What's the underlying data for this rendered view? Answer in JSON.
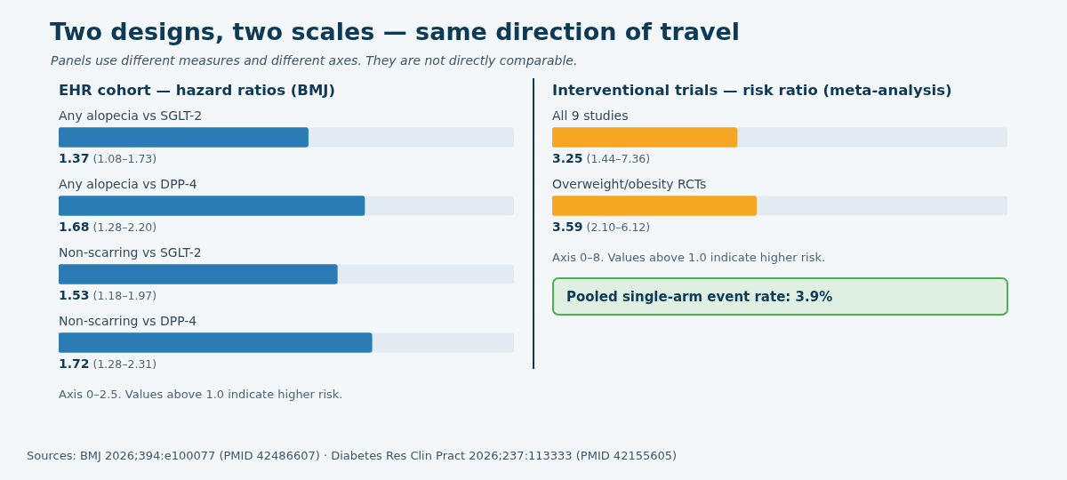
{
  "chart_data": [
    {
      "type": "other",
      "title": "Two designs, two scales — same direction of travel",
      "subtitle": "Panels use different measures and different axes. They are not directly comparable.",
      "annotations": [
        "Sources: BMJ 2026;394:e100077 (PMID 42486607) · Diabetes Res Clin Pract 2026;237:113333 (PMID 42155605)"
      ]
    },
    {
      "type": "bar",
      "orientation": "horizontal",
      "title": "EHR cohort — hazard ratios (BMJ)",
      "categories": [
        "Any alopecia vs SGLT-2",
        "Any alopecia vs DPP-4",
        "Non-scarring vs SGLT-2",
        "Non-scarring vs DPP-4"
      ],
      "values": [
        1.37,
        1.68,
        1.53,
        1.72
      ],
      "value_labels": [
        "1.37 (1.08–1.73)",
        "1.68 (1.28–2.20)",
        "1.53 (1.18–1.97)",
        "1.72 (1.28–2.31)"
      ],
      "color": "#2b7bb5",
      "xlim": [
        0,
        2.5
      ],
      "tick_labels": false,
      "annotations": [
        "Axis 0–2.5. Values above 1.0 indicate higher risk."
      ]
    },
    {
      "type": "bar",
      "orientation": "horizontal",
      "title": "Interventional trials — risk ratio (meta-analysis)",
      "categories": [
        "All 9 studies",
        "Overweight/obesity RCTs"
      ],
      "values": [
        3.25,
        3.59
      ],
      "value_labels": [
        "3.25 (1.44–7.36)",
        "3.59 (2.10–6.12)"
      ],
      "color": "#f5a623",
      "xlim": [
        0,
        8
      ],
      "tick_labels": false,
      "annotations": [
        "Axis 0–8. Values above 1.0 indicate higher risk.",
        "Pooled single-arm event rate: 3.9%"
      ]
    }
  ]
}
